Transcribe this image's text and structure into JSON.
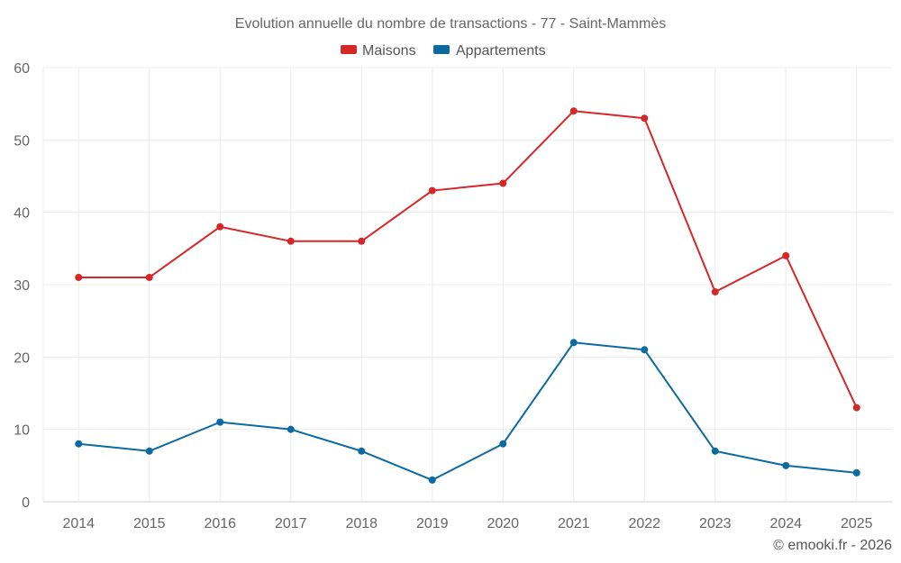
{
  "chart_data": {
    "type": "line",
    "title": "Evolution annuelle du nombre de transactions - 77 - Saint-Mammès",
    "xlabel": "",
    "ylabel": "",
    "categories": [
      "2014",
      "2015",
      "2016",
      "2017",
      "2018",
      "2019",
      "2020",
      "2021",
      "2022",
      "2023",
      "2024",
      "2025"
    ],
    "ylim": [
      0,
      60
    ],
    "yticks": [
      0,
      10,
      20,
      30,
      40,
      50,
      60
    ],
    "grid": true,
    "legend_position": "top-center",
    "series": [
      {
        "name": "Maisons",
        "color": "#d62728",
        "values": [
          31,
          31,
          38,
          36,
          36,
          43,
          44,
          54,
          53,
          29,
          34,
          13
        ]
      },
      {
        "name": "Appartements",
        "color": "#0a6aa1",
        "values": [
          8,
          7,
          11,
          10,
          7,
          3,
          8,
          22,
          21,
          7,
          5,
          4
        ]
      }
    ],
    "credit": "© emooki.fr - 2026"
  }
}
